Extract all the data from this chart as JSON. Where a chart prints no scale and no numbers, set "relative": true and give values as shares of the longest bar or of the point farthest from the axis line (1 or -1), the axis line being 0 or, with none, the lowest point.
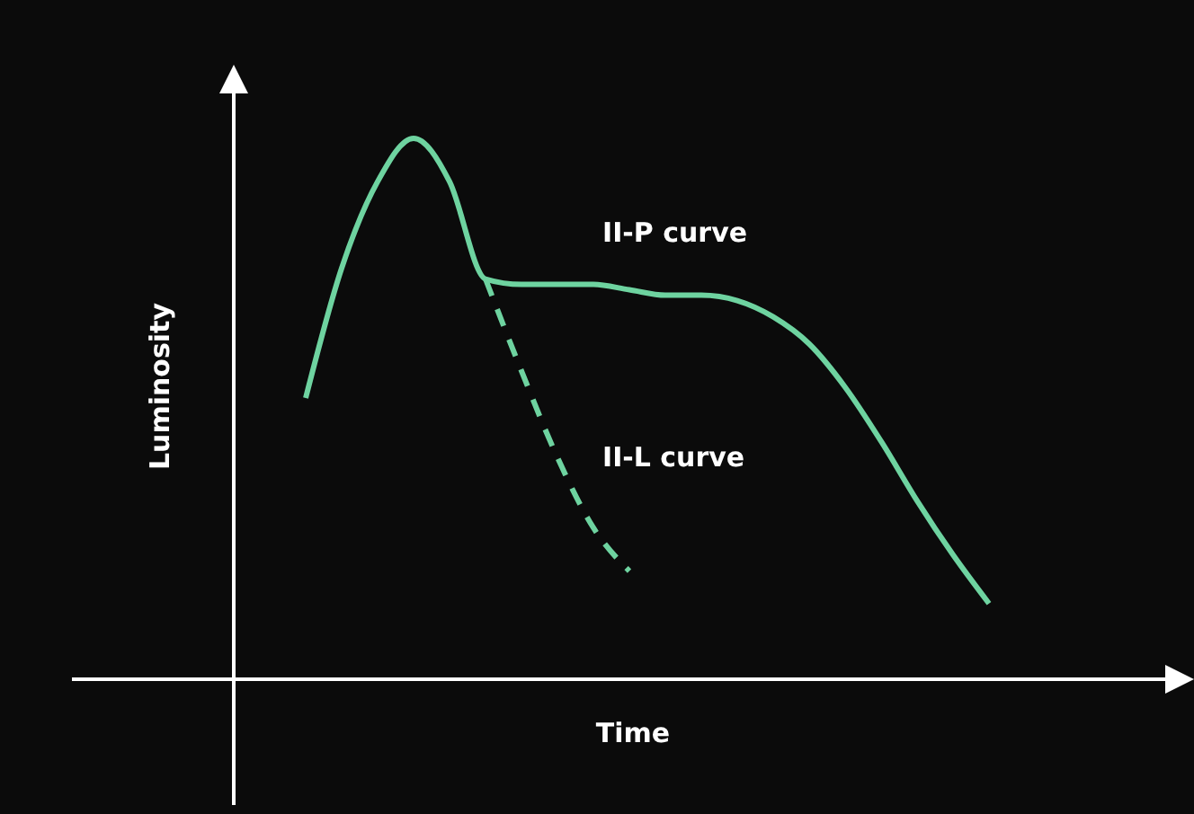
{
  "chart_data": {
    "type": "line",
    "relative": true,
    "xlabel": "Time",
    "ylabel": "Luminosity",
    "categories": [
      null,
      null,
      null,
      null,
      null,
      null,
      null,
      null,
      null,
      null,
      null,
      null,
      null,
      null,
      null,
      null,
      null,
      null,
      null,
      null
    ],
    "marker": "none",
    "series": [
      {
        "name": "II-P curve",
        "color": "#6ed3a0",
        "line_style": "solid",
        "values": [
          0.52,
          0.76,
          0.92,
          1.0,
          0.92,
          0.74,
          0.73,
          0.73,
          0.73,
          0.72,
          0.71,
          0.71,
          0.7,
          0.67,
          0.62,
          0.54,
          0.44,
          0.33,
          0.23,
          0.14
        ]
      },
      {
        "name": "II-L curve",
        "color": "#6ed3a0",
        "line_style": "dashed",
        "values": [
          null,
          null,
          null,
          null,
          null,
          0.74,
          0.57,
          0.41,
          0.28,
          0.2,
          null,
          null,
          null,
          null,
          null,
          null,
          null,
          null,
          null,
          null
        ]
      }
    ]
  }
}
